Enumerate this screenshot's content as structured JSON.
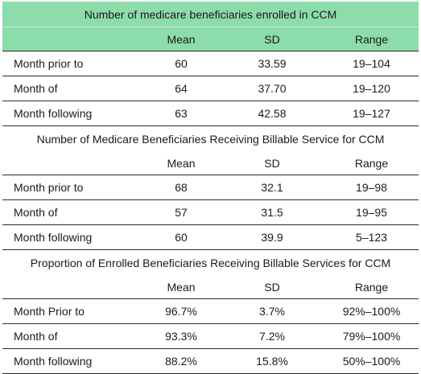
{
  "sections": [
    {
      "title": "Number of medicare beneficiaries enrolled in CCM",
      "headers": [
        "",
        "Mean",
        "SD",
        "Range"
      ],
      "rows": [
        {
          "label": "Month prior to",
          "mean": "60",
          "sd": "33.59",
          "range": "19–104"
        },
        {
          "label": "Month of",
          "mean": "64",
          "sd": "37.70",
          "range": "19–120"
        },
        {
          "label": "Month following",
          "mean": "63",
          "sd": "42.58",
          "range": "19–127"
        }
      ]
    },
    {
      "title": "Number of Medicare Beneficiaries Receiving Billable Service for CCM",
      "headers": [
        "",
        "Mean",
        "SD",
        "Range"
      ],
      "rows": [
        {
          "label": "Month prior to",
          "mean": "68",
          "sd": "32.1",
          "range": "19–98"
        },
        {
          "label": "Month of",
          "mean": "57",
          "sd": "31.5",
          "range": "19–95"
        },
        {
          "label": "Month following",
          "mean": "60",
          "sd": "39.9",
          "range": "5–123"
        }
      ]
    },
    {
      "title": "Proportion of Enrolled Beneficiaries Receiving Billable Services for CCM",
      "headers": [
        "",
        "Mean",
        "SD",
        "Range"
      ],
      "rows": [
        {
          "label": "Month Prior to",
          "mean": "96.7%",
          "sd": "3.7%",
          "range": "92%–100%"
        },
        {
          "label": "Month of",
          "mean": "93.3%",
          "sd": "7.2%",
          "range": "79%–100%"
        },
        {
          "label": "Month following",
          "mean": "88.2%",
          "sd": "15.8%",
          "range": "50%–100%"
        }
      ]
    }
  ],
  "colors": {
    "header_fill": "#8ddcab",
    "rule": "#2b2b2b"
  }
}
